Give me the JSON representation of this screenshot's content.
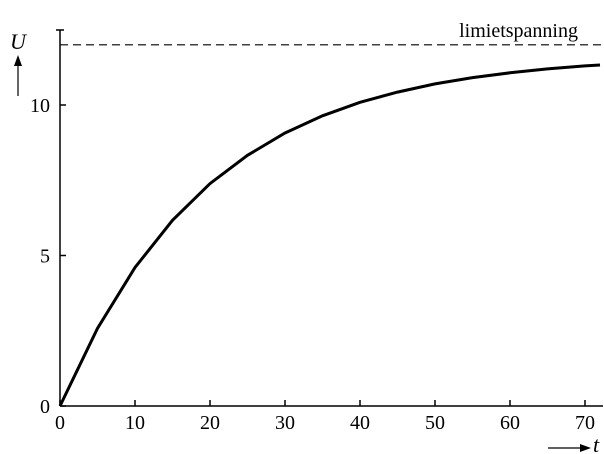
{
  "chart_data": {
    "type": "line",
    "title": "",
    "xlabel": "t",
    "ylabel": "U",
    "xlim": [
      0,
      72
    ],
    "ylim": [
      0,
      12.5
    ],
    "x_ticks": [
      0,
      10,
      20,
      30,
      40,
      50,
      60,
      70
    ],
    "y_ticks": [
      0,
      5,
      10
    ],
    "x_tick_labels": [
      "0",
      "10",
      "20",
      "30",
      "40",
      "50",
      "60",
      "70"
    ],
    "y_tick_labels": [
      "0",
      "5",
      "10"
    ],
    "grid": false,
    "series": [
      {
        "x": [
          0,
          5,
          10,
          15,
          20,
          25,
          30,
          35,
          40,
          45,
          50,
          55,
          60,
          65,
          70,
          72
        ],
        "y": [
          0,
          2.58,
          4.6,
          6.17,
          7.39,
          8.33,
          9.07,
          9.64,
          10.09,
          10.43,
          10.7,
          10.91,
          11.07,
          11.2,
          11.3,
          11.33
        ]
      }
    ],
    "asymptote": {
      "y": 12,
      "label": "limietspanning",
      "style": "dashed"
    }
  }
}
